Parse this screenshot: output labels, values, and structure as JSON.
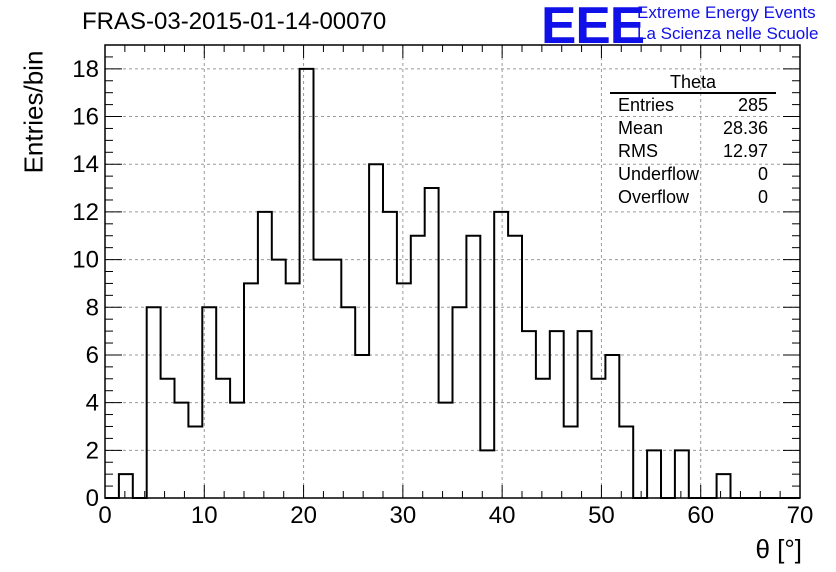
{
  "title": "FRAS-03-2015-01-14-00070",
  "logo": {
    "mark": "EEE",
    "line1": "Extreme Energy Events",
    "line2": "La Scienza nelle Scuole",
    "color": "#1010e8"
  },
  "stats": {
    "title": "Theta",
    "rows": [
      {
        "label": "Entries",
        "value": "285"
      },
      {
        "label": "Mean",
        "value": "28.36"
      },
      {
        "label": "RMS",
        "value": "12.97"
      },
      {
        "label": "Underflow",
        "value": "0"
      },
      {
        "label": "Overflow",
        "value": "0"
      }
    ]
  },
  "chart_data": {
    "type": "bar",
    "histogram": true,
    "title": "FRAS-03-2015-01-14-00070",
    "xlabel": "θ [°]",
    "ylabel": "Entries/bin",
    "xlim": [
      0,
      70
    ],
    "ylim": [
      0,
      19
    ],
    "grid": true,
    "bin_width": 1.4,
    "bin_edges_start": 0,
    "values": [
      0,
      1,
      0,
      8,
      5,
      4,
      3,
      8,
      5,
      4,
      9,
      12,
      10,
      9,
      18,
      10,
      10,
      8,
      6,
      14,
      12,
      9,
      11,
      13,
      4,
      8,
      11,
      2,
      12,
      11,
      7,
      5,
      7,
      3,
      7,
      5,
      6,
      3,
      0,
      2,
      0,
      2,
      0,
      0,
      1,
      0,
      0,
      0,
      0,
      0
    ],
    "x_ticks": [
      0,
      10,
      20,
      30,
      40,
      50,
      60,
      70
    ],
    "y_ticks": [
      0,
      2,
      4,
      6,
      8,
      10,
      12,
      14,
      16,
      18
    ]
  }
}
